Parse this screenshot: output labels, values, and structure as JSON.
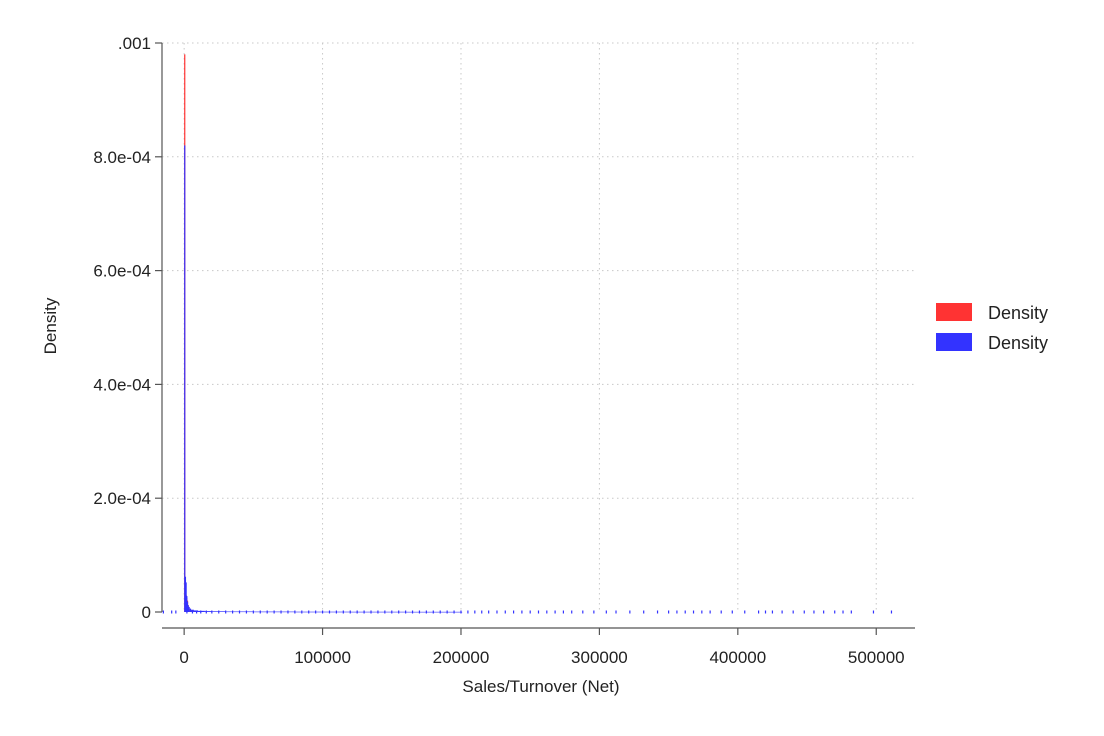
{
  "chart_data": {
    "type": "bar",
    "subtype": "overlaid-histogram",
    "title": "",
    "xlabel": "Sales/Turnover (Net)",
    "ylabel": "Density",
    "xlim": [
      -16000,
      528000
    ],
    "ylim": [
      0,
      0.001
    ],
    "x_ticks": [
      0,
      100000,
      200000,
      300000,
      400000,
      500000
    ],
    "x_tick_labels": [
      "0",
      "100000",
      "200000",
      "300000",
      "400000",
      "500000"
    ],
    "y_ticks": [
      0,
      0.0002,
      0.0004,
      0.0006,
      0.0008,
      0.001
    ],
    "y_tick_labels": [
      "0",
      "2.0e-04",
      "4.0e-04",
      "6.0e-04",
      "8.0e-04",
      ".001"
    ],
    "grid": true,
    "legend_position": "right",
    "series": [
      {
        "name": "Density",
        "color": "#ff3333",
        "x": [
          0,
          500,
          1000,
          1500,
          2000,
          2500,
          3000,
          4000,
          5000,
          7000,
          10000
        ],
        "values": [
          0.00098,
          4e-05,
          3e-05,
          2.5e-05,
          2e-05,
          1.2e-05,
          8e-06,
          5e-06,
          3e-06,
          2e-06,
          1.5e-06
        ]
      },
      {
        "name": "Density",
        "color": "#3333ff",
        "x": [
          0,
          500,
          1000,
          1500,
          2000,
          2500,
          3000,
          4000,
          5000,
          7000,
          10000,
          15000,
          20000,
          30000,
          50000,
          80000,
          120000,
          160000,
          200000
        ],
        "values": [
          0.00082,
          6.2e-05,
          5.2e-05,
          2.8e-05,
          1.8e-05,
          1.2e-05,
          9e-06,
          6e-06,
          4e-06,
          2.8e-06,
          2e-06,
          1.5e-06,
          1.2e-06,
          9e-07,
          7e-07,
          5e-07,
          4e-07,
          3e-07,
          2e-07
        ]
      }
    ],
    "rug_x": [
      -15000,
      -9000,
      -6000,
      2000,
      6000,
      9000,
      12000,
      16000,
      20000,
      25000,
      30000,
      35000,
      40000,
      45000,
      50000,
      55000,
      60000,
      65000,
      70000,
      75000,
      80000,
      85000,
      90000,
      95000,
      100000,
      105000,
      110000,
      115000,
      120000,
      125000,
      130000,
      135000,
      140000,
      145000,
      150000,
      155000,
      160000,
      165000,
      170000,
      175000,
      180000,
      185000,
      190000,
      195000,
      200000,
      205000,
      210000,
      215000,
      220000,
      226000,
      232000,
      238000,
      244000,
      250000,
      256000,
      262000,
      268000,
      274000,
      280000,
      288000,
      296000,
      305000,
      312000,
      322000,
      332000,
      342000,
      350000,
      356000,
      362000,
      368000,
      374000,
      380000,
      388000,
      396000,
      405000,
      415000,
      420000,
      425000,
      432000,
      440000,
      448000,
      455000,
      462000,
      470000,
      476000,
      482000,
      498000,
      511000
    ],
    "rug_color": "#3333ff"
  }
}
